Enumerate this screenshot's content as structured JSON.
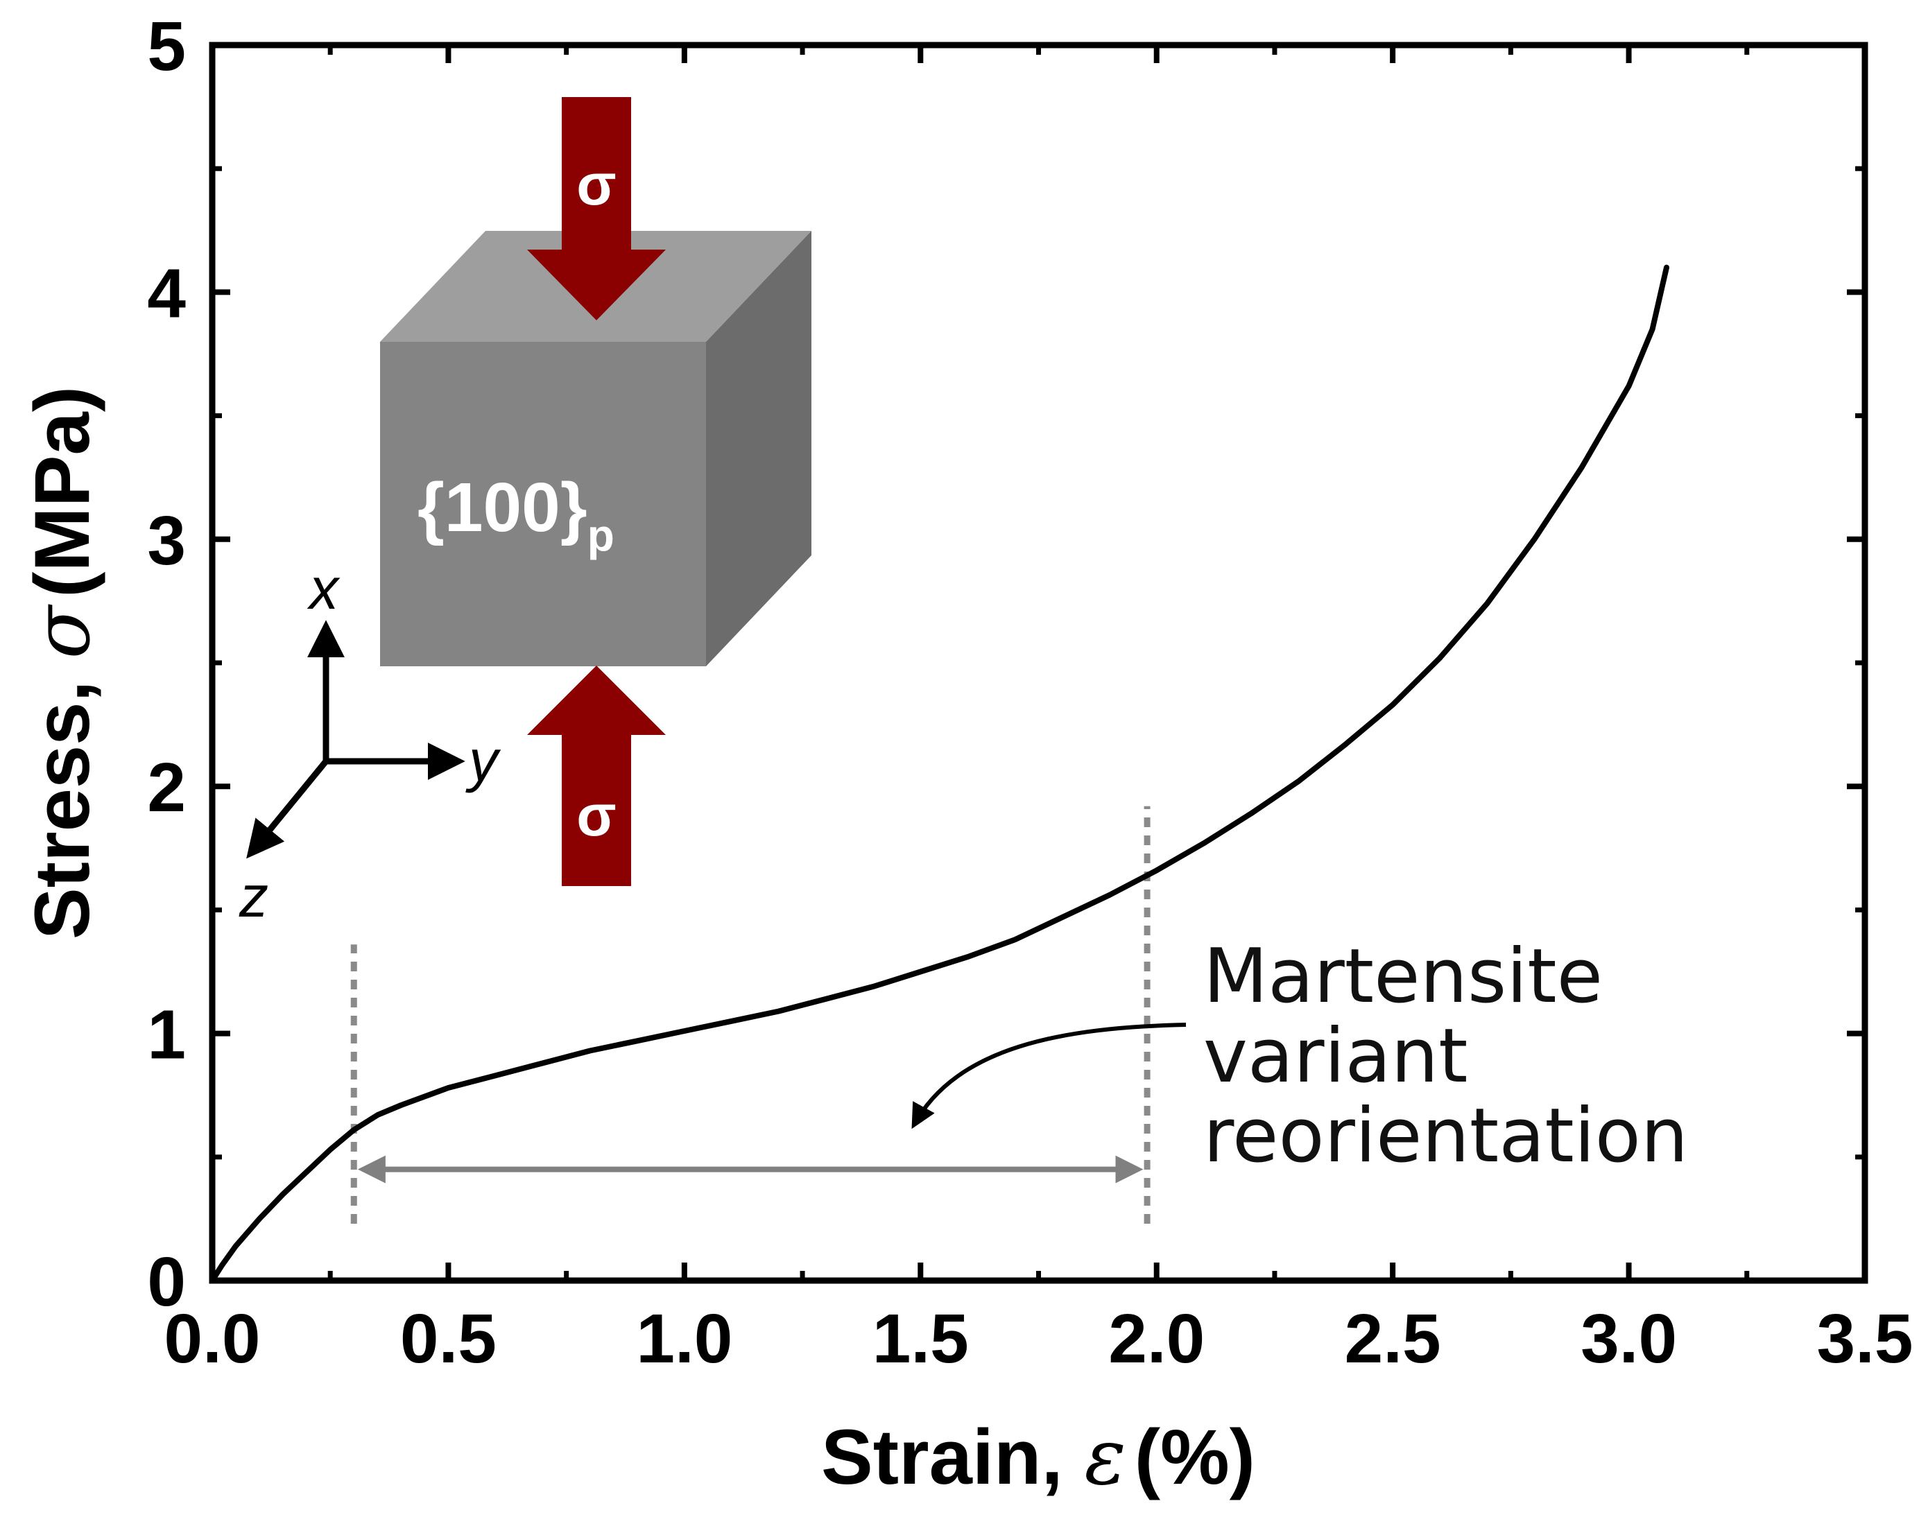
{
  "chart_data": {
    "type": "line",
    "xlabel": "Strain, ",
    "xlabel_symbol": "ε",
    "xlabel_unit": "(%)",
    "ylabel": "Stress, ",
    "ylabel_symbol": "σ",
    "ylabel_unit": "(MPa)",
    "xlim": [
      0.0,
      3.5
    ],
    "ylim": [
      0,
      5
    ],
    "xticks": [
      "0.0",
      "0.5",
      "1.0",
      "1.5",
      "2.0",
      "2.5",
      "3.0",
      "3.5"
    ],
    "yticks": [
      "0",
      "1",
      "2",
      "3",
      "4",
      "5"
    ],
    "xtick_values": [
      0.0,
      0.5,
      1.0,
      1.5,
      2.0,
      2.5,
      3.0,
      3.5
    ],
    "ytick_values": [
      0,
      1,
      2,
      3,
      4,
      5
    ],
    "grid": false,
    "series": [
      {
        "name": "stress-strain curve",
        "color": "#000000",
        "x": [
          0.0,
          0.02,
          0.05,
          0.1,
          0.15,
          0.2,
          0.25,
          0.3,
          0.35,
          0.4,
          0.5,
          0.6,
          0.7,
          0.8,
          0.9,
          1.0,
          1.1,
          1.2,
          1.3,
          1.4,
          1.5,
          1.6,
          1.7,
          1.8,
          1.9,
          2.0,
          2.1,
          2.2,
          2.3,
          2.4,
          2.5,
          2.6,
          2.7,
          2.8,
          2.9,
          3.0,
          3.05,
          3.08
        ],
        "y": [
          0.0,
          0.06,
          0.14,
          0.25,
          0.35,
          0.44,
          0.53,
          0.61,
          0.67,
          0.71,
          0.78,
          0.83,
          0.88,
          0.93,
          0.97,
          1.01,
          1.05,
          1.09,
          1.14,
          1.19,
          1.25,
          1.31,
          1.38,
          1.47,
          1.56,
          1.66,
          1.77,
          1.89,
          2.02,
          2.17,
          2.33,
          2.52,
          2.74,
          3.0,
          3.29,
          3.62,
          3.85,
          4.1
        ]
      }
    ],
    "reference_lines_x": [
      0.3,
      1.98
    ],
    "range_arrow": {
      "x_start": 0.32,
      "x_end": 1.96,
      "y": 0.45
    },
    "annotation": [
      "Martensite",
      "variant",
      "reorientation"
    ],
    "inset": {
      "cube_label": "{100}",
      "cube_label_subscript": "p",
      "force_label_top": "σ",
      "force_label_bottom": "σ",
      "axes_labels": [
        "x",
        "y",
        "z"
      ],
      "arrow_color": "#8b0000"
    }
  }
}
